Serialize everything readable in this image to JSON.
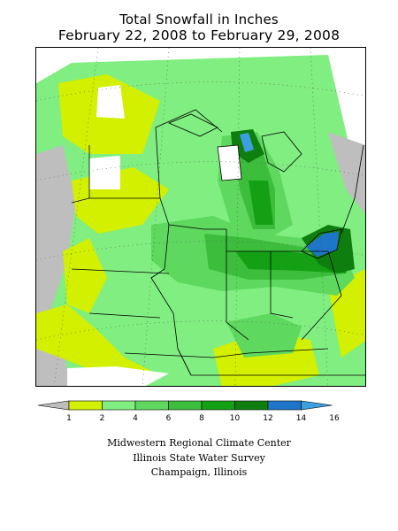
{
  "title": {
    "line1": "Total Snowfall in Inches",
    "line2": "February 22, 2008 to February 29, 2008"
  },
  "legend": {
    "ticks": [
      "1",
      "2",
      "4",
      "6",
      "8",
      "10",
      "12",
      "14",
      "16"
    ],
    "colors": [
      "#bebebe",
      "#d2f000",
      "#80ee80",
      "#5ed85e",
      "#3cbd3c",
      "#14a014",
      "#0e7f0e",
      "#1e76c8",
      "#3ca0e0"
    ]
  },
  "credits": {
    "line1": "Midwestern Regional Climate Center",
    "line2": "Illinois State Water Survey",
    "line3": "Champaign, Illinois"
  }
}
